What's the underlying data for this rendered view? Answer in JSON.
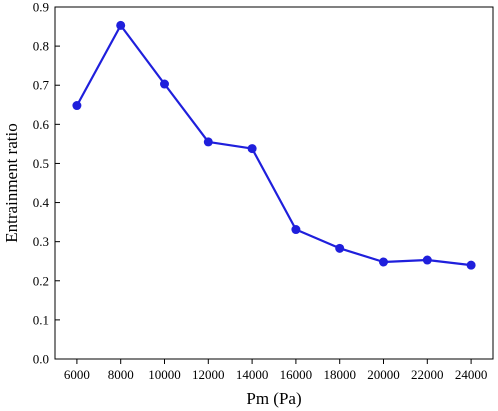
{
  "chart_data": {
    "type": "line",
    "title": "",
    "xlabel": "Pm (Pa)",
    "ylabel": "Entrainment ratio",
    "x": [
      6000,
      8000,
      10000,
      12000,
      14000,
      16000,
      18000,
      20000,
      22000,
      24000
    ],
    "series": [
      {
        "values": [
          0.648,
          0.853,
          0.703,
          0.555,
          0.538,
          0.331,
          0.283,
          0.248,
          0.253,
          0.24
        ],
        "color": "#1f1fdc"
      }
    ],
    "xlim": [
      5000,
      25000
    ],
    "ylim": [
      0,
      0.9
    ],
    "xticks": [
      6000,
      8000,
      10000,
      12000,
      14000,
      16000,
      18000,
      20000,
      22000,
      24000
    ],
    "yticks": [
      0.0,
      0.1,
      0.2,
      0.3,
      0.4,
      0.5,
      0.6,
      0.7,
      0.8,
      0.9
    ],
    "ytick_labels": [
      "0.0",
      "0.1",
      "0.2",
      "0.3",
      "0.4",
      "0.5",
      "0.6",
      "0.7",
      "0.8",
      "0.9"
    ],
    "grid": false,
    "legend": "none"
  }
}
